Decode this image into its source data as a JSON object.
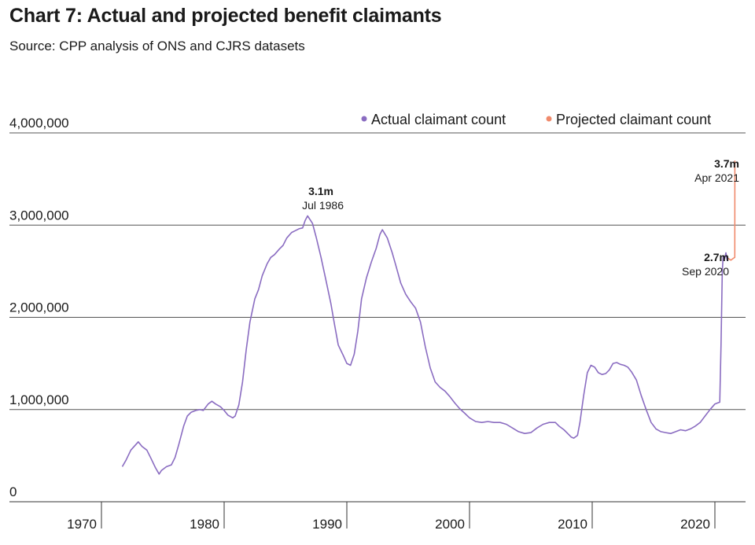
{
  "title": "Chart 7: Actual and projected benefit claimants",
  "subtitle": "Source: CPP analysis of ONS and CJRS datasets",
  "chart_data": {
    "type": "line",
    "xlabel": "",
    "ylabel": "",
    "xlim": [
      1962.5,
      2022.5
    ],
    "ylim": [
      0,
      4000000
    ],
    "y_ticks": [
      {
        "value": 0,
        "label": "0"
      },
      {
        "value": 1000000,
        "label": "1,000,000"
      },
      {
        "value": 2000000,
        "label": "2,000,000"
      },
      {
        "value": 3000000,
        "label": "3,000,000"
      },
      {
        "value": 4000000,
        "label": "4,000,000"
      }
    ],
    "x_ticks": [
      {
        "value": 1970,
        "label": "1970"
      },
      {
        "value": 1980,
        "label": "1980"
      },
      {
        "value": 1990,
        "label": "1990"
      },
      {
        "value": 2000,
        "label": "2000"
      },
      {
        "value": 2010,
        "label": "2010"
      },
      {
        "value": 2020,
        "label": "2020"
      }
    ],
    "grid": "horizontal",
    "legend_position": "top-right",
    "series": [
      {
        "name": "Actual claimant count",
        "color": "#8a6cc1",
        "points": [
          [
            1971.7,
            380000
          ],
          [
            1972.0,
            450000
          ],
          [
            1972.4,
            560000
          ],
          [
            1972.8,
            620000
          ],
          [
            1973.0,
            650000
          ],
          [
            1973.3,
            600000
          ],
          [
            1973.7,
            560000
          ],
          [
            1974.0,
            480000
          ],
          [
            1974.4,
            370000
          ],
          [
            1974.7,
            300000
          ],
          [
            1974.9,
            340000
          ],
          [
            1975.3,
            380000
          ],
          [
            1975.7,
            400000
          ],
          [
            1976.0,
            480000
          ],
          [
            1976.3,
            620000
          ],
          [
            1976.7,
            820000
          ],
          [
            1977.0,
            930000
          ],
          [
            1977.3,
            970000
          ],
          [
            1977.7,
            990000
          ],
          [
            1978.0,
            1000000
          ],
          [
            1978.3,
            990000
          ],
          [
            1978.7,
            1060000
          ],
          [
            1979.0,
            1090000
          ],
          [
            1979.3,
            1060000
          ],
          [
            1979.7,
            1030000
          ],
          [
            1980.0,
            990000
          ],
          [
            1980.3,
            940000
          ],
          [
            1980.7,
            910000
          ],
          [
            1980.9,
            930000
          ],
          [
            1981.2,
            1050000
          ],
          [
            1981.5,
            1300000
          ],
          [
            1981.8,
            1650000
          ],
          [
            1982.1,
            1950000
          ],
          [
            1982.5,
            2200000
          ],
          [
            1982.8,
            2300000
          ],
          [
            1983.1,
            2450000
          ],
          [
            1983.5,
            2580000
          ],
          [
            1983.8,
            2650000
          ],
          [
            1984.1,
            2680000
          ],
          [
            1984.5,
            2740000
          ],
          [
            1984.8,
            2780000
          ],
          [
            1985.1,
            2860000
          ],
          [
            1985.5,
            2920000
          ],
          [
            1985.8,
            2940000
          ],
          [
            1986.1,
            2960000
          ],
          [
            1986.4,
            2970000
          ],
          [
            1986.6,
            3050000
          ],
          [
            1986.8,
            3100000
          ],
          [
            1987.2,
            3020000
          ],
          [
            1987.5,
            2870000
          ],
          [
            1987.9,
            2650000
          ],
          [
            1988.3,
            2400000
          ],
          [
            1988.7,
            2150000
          ],
          [
            1989.0,
            1920000
          ],
          [
            1989.3,
            1700000
          ],
          [
            1989.7,
            1590000
          ],
          [
            1990.0,
            1500000
          ],
          [
            1990.3,
            1480000
          ],
          [
            1990.6,
            1600000
          ],
          [
            1990.9,
            1850000
          ],
          [
            1991.2,
            2200000
          ],
          [
            1991.6,
            2430000
          ],
          [
            1992.0,
            2600000
          ],
          [
            1992.4,
            2750000
          ],
          [
            1992.7,
            2900000
          ],
          [
            1992.9,
            2950000
          ],
          [
            1993.3,
            2860000
          ],
          [
            1993.7,
            2700000
          ],
          [
            1994.0,
            2560000
          ],
          [
            1994.4,
            2370000
          ],
          [
            1994.8,
            2250000
          ],
          [
            1995.2,
            2170000
          ],
          [
            1995.6,
            2100000
          ],
          [
            1996.0,
            1950000
          ],
          [
            1996.4,
            1680000
          ],
          [
            1996.8,
            1450000
          ],
          [
            1997.2,
            1300000
          ],
          [
            1997.6,
            1240000
          ],
          [
            1998.0,
            1200000
          ],
          [
            1998.4,
            1140000
          ],
          [
            1998.8,
            1070000
          ],
          [
            1999.2,
            1010000
          ],
          [
            1999.6,
            960000
          ],
          [
            2000.0,
            910000
          ],
          [
            2000.5,
            870000
          ],
          [
            2001.0,
            860000
          ],
          [
            2001.5,
            870000
          ],
          [
            2002.0,
            860000
          ],
          [
            2002.5,
            860000
          ],
          [
            2003.0,
            840000
          ],
          [
            2003.5,
            800000
          ],
          [
            2004.0,
            760000
          ],
          [
            2004.5,
            740000
          ],
          [
            2005.0,
            750000
          ],
          [
            2005.5,
            800000
          ],
          [
            2006.0,
            840000
          ],
          [
            2006.5,
            860000
          ],
          [
            2007.0,
            860000
          ],
          [
            2007.3,
            820000
          ],
          [
            2007.7,
            780000
          ],
          [
            2008.0,
            740000
          ],
          [
            2008.3,
            700000
          ],
          [
            2008.5,
            690000
          ],
          [
            2008.8,
            720000
          ],
          [
            2009.0,
            860000
          ],
          [
            2009.3,
            1150000
          ],
          [
            2009.6,
            1400000
          ],
          [
            2009.9,
            1480000
          ],
          [
            2010.2,
            1460000
          ],
          [
            2010.5,
            1400000
          ],
          [
            2010.8,
            1380000
          ],
          [
            2011.1,
            1390000
          ],
          [
            2011.4,
            1430000
          ],
          [
            2011.7,
            1500000
          ],
          [
            2012.0,
            1510000
          ],
          [
            2012.3,
            1490000
          ],
          [
            2012.6,
            1480000
          ],
          [
            2012.9,
            1460000
          ],
          [
            2013.2,
            1410000
          ],
          [
            2013.6,
            1320000
          ],
          [
            2014.0,
            1150000
          ],
          [
            2014.4,
            1000000
          ],
          [
            2014.8,
            860000
          ],
          [
            2015.2,
            790000
          ],
          [
            2015.6,
            760000
          ],
          [
            2016.0,
            750000
          ],
          [
            2016.4,
            740000
          ],
          [
            2016.8,
            760000
          ],
          [
            2017.2,
            780000
          ],
          [
            2017.6,
            770000
          ],
          [
            2018.0,
            790000
          ],
          [
            2018.4,
            820000
          ],
          [
            2018.8,
            860000
          ],
          [
            2019.2,
            930000
          ],
          [
            2019.6,
            1000000
          ],
          [
            2020.0,
            1060000
          ],
          [
            2020.2,
            1070000
          ],
          [
            2020.4,
            1080000
          ],
          [
            2020.5,
            1700000
          ],
          [
            2020.6,
            2500000
          ],
          [
            2020.67,
            2660000
          ],
          [
            2020.8,
            2640000
          ],
          [
            2020.9,
            2700000
          ],
          [
            2021.0,
            2620000
          ],
          [
            2021.08,
            2640000
          ]
        ]
      },
      {
        "name": "Projected claimant count",
        "color": "#f08a6c",
        "points": [
          [
            2021.08,
            2640000
          ],
          [
            2021.3,
            2620000
          ],
          [
            2021.5,
            2640000
          ],
          [
            2021.62,
            2650000
          ],
          [
            2021.63,
            3700000
          ]
        ]
      }
    ],
    "annotations": [
      {
        "value_label": "3.1m",
        "date_label": "Jul 1986",
        "x": 1986.5,
        "y": 3100000
      },
      {
        "value_label": "3.7m",
        "date_label": "Apr 2021",
        "x": 2021.25,
        "y": 3700000
      },
      {
        "value_label": "2.7m",
        "date_label": "Sep 2020",
        "x": 2020.67,
        "y": 2700000
      }
    ]
  }
}
